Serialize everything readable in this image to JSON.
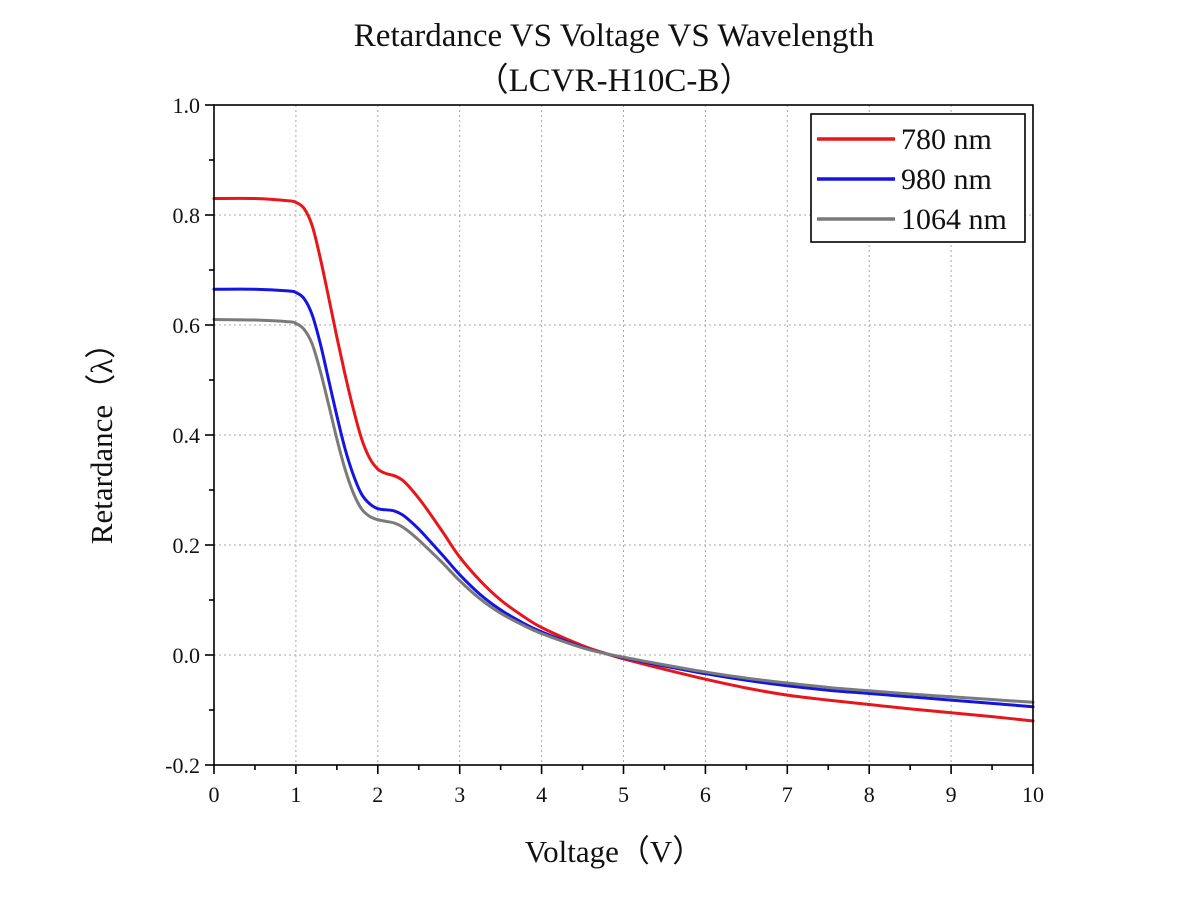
{
  "chart_data": {
    "type": "line",
    "title": "Retardance VS Voltage VS Wavelength",
    "subtitle": "（LCVR-H10C-B）",
    "xlabel": "Voltage（V）",
    "ylabel": "Retardance（λ）",
    "xlim": [
      0,
      10
    ],
    "ylim": [
      -0.2,
      1.0
    ],
    "xticks": [
      0,
      1,
      2,
      3,
      4,
      5,
      6,
      7,
      8,
      9,
      10
    ],
    "yticks": [
      -0.2,
      0.0,
      0.2,
      0.4,
      0.6,
      0.8,
      1.0
    ],
    "xtick_labels": [
      "0",
      "1",
      "2",
      "3",
      "4",
      "5",
      "6",
      "7",
      "8",
      "9",
      "10"
    ],
    "ytick_labels": [
      "-0.2",
      "0.0",
      "0.2",
      "0.4",
      "0.6",
      "0.8",
      "1.0"
    ],
    "grid": true,
    "legend_position": "top-right",
    "series": [
      {
        "name": "780 nm",
        "color": "#e8161b",
        "x": [
          0,
          0.5,
          0.9,
          1.0,
          1.1,
          1.2,
          1.3,
          1.4,
          1.5,
          1.6,
          1.7,
          1.8,
          1.9,
          2.0,
          2.1,
          2.2,
          2.3,
          2.4,
          2.5,
          2.6,
          2.8,
          3.0,
          3.25,
          3.5,
          3.75,
          4.0,
          4.5,
          4.8,
          5.0,
          5.5,
          6.0,
          6.5,
          7.0,
          7.5,
          8.0,
          8.5,
          9.0,
          9.5,
          10.0
        ],
        "y": [
          0.83,
          0.83,
          0.826,
          0.823,
          0.812,
          0.78,
          0.72,
          0.65,
          0.578,
          0.51,
          0.448,
          0.394,
          0.358,
          0.338,
          0.33,
          0.326,
          0.318,
          0.303,
          0.285,
          0.265,
          0.222,
          0.178,
          0.135,
          0.1,
          0.073,
          0.05,
          0.017,
          0.002,
          -0.007,
          -0.026,
          -0.044,
          -0.06,
          -0.073,
          -0.082,
          -0.09,
          -0.098,
          -0.105,
          -0.112,
          -0.12
        ]
      },
      {
        "name": "980 nm",
        "color": "#1515e0",
        "x": [
          0,
          0.5,
          0.9,
          1.0,
          1.1,
          1.2,
          1.3,
          1.4,
          1.5,
          1.6,
          1.7,
          1.8,
          1.9,
          2.0,
          2.1,
          2.2,
          2.3,
          2.4,
          2.5,
          2.6,
          2.8,
          3.0,
          3.25,
          3.5,
          3.75,
          4.0,
          4.5,
          4.8,
          5.0,
          5.5,
          6.0,
          6.5,
          7.0,
          7.5,
          8.0,
          8.5,
          9.0,
          9.5,
          10.0
        ],
        "y": [
          0.665,
          0.665,
          0.662,
          0.659,
          0.648,
          0.618,
          0.565,
          0.5,
          0.435,
          0.375,
          0.328,
          0.293,
          0.275,
          0.266,
          0.264,
          0.262,
          0.255,
          0.243,
          0.229,
          0.213,
          0.18,
          0.146,
          0.11,
          0.082,
          0.06,
          0.042,
          0.014,
          0.002,
          -0.005,
          -0.02,
          -0.034,
          -0.046,
          -0.056,
          -0.064,
          -0.07,
          -0.076,
          -0.082,
          -0.088,
          -0.094
        ]
      },
      {
        "name": "1064 nm",
        "color": "#7a7a7a",
        "x": [
          0,
          0.5,
          0.9,
          1.0,
          1.1,
          1.2,
          1.3,
          1.4,
          1.5,
          1.6,
          1.7,
          1.8,
          1.9,
          2.0,
          2.1,
          2.2,
          2.3,
          2.4,
          2.5,
          2.6,
          2.8,
          3.0,
          3.25,
          3.5,
          3.75,
          4.0,
          4.5,
          4.8,
          5.0,
          5.5,
          6.0,
          6.5,
          7.0,
          7.5,
          8.0,
          8.5,
          9.0,
          9.5,
          10.0
        ],
        "y": [
          0.61,
          0.609,
          0.606,
          0.603,
          0.592,
          0.565,
          0.515,
          0.455,
          0.393,
          0.338,
          0.295,
          0.266,
          0.252,
          0.246,
          0.243,
          0.24,
          0.233,
          0.222,
          0.209,
          0.195,
          0.166,
          0.135,
          0.102,
          0.076,
          0.056,
          0.039,
          0.013,
          0.002,
          -0.004,
          -0.018,
          -0.031,
          -0.042,
          -0.051,
          -0.059,
          -0.065,
          -0.071,
          -0.076,
          -0.081,
          -0.086
        ]
      }
    ]
  }
}
